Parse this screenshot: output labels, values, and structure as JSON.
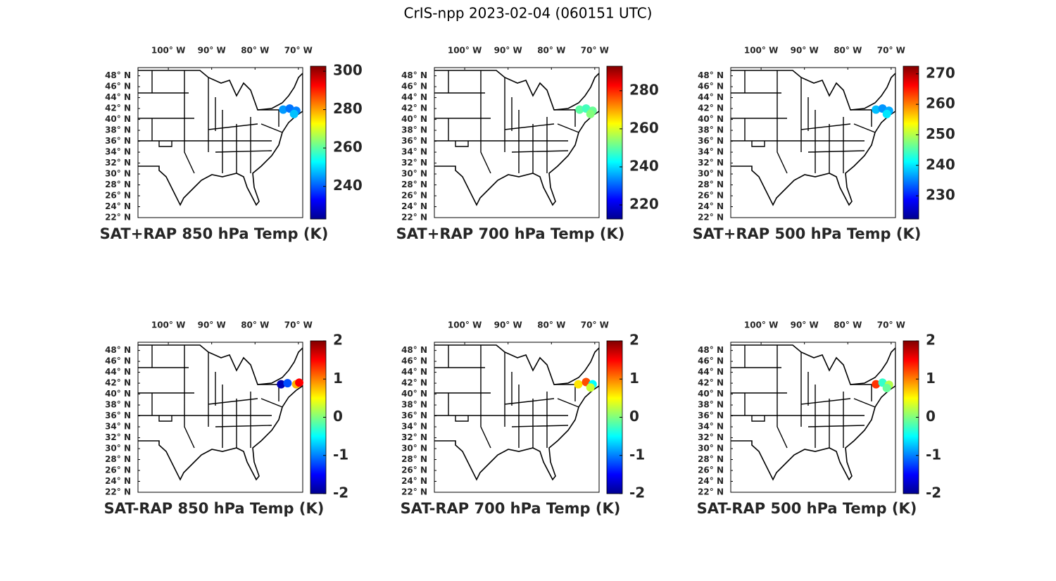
{
  "title": "CrIS-npp 2023-02-04 (060151 UTC)",
  "panels": [
    {
      "title": "SAT+RAP 850 hPa Temp (K)",
      "xlim": [
        -107,
        -69
      ],
      "ylim": [
        22,
        49.5
      ],
      "xticks": [
        {
          "value": -100,
          "label": "100° W"
        },
        {
          "value": -90,
          "label": "90° W"
        },
        {
          "value": -80,
          "label": "80° W"
        },
        {
          "value": -70,
          "label": "70° W"
        }
      ],
      "yticks": [
        {
          "value": 22,
          "label": "22° N"
        },
        {
          "value": 24,
          "label": "24° N"
        },
        {
          "value": 26,
          "label": "26° N"
        },
        {
          "value": 28,
          "label": "28° N"
        },
        {
          "value": 30,
          "label": "30° N"
        },
        {
          "value": 32,
          "label": "32° N"
        },
        {
          "value": 34,
          "label": "34° N"
        },
        {
          "value": 36,
          "label": "36° N"
        },
        {
          "value": 38,
          "label": "38° N"
        },
        {
          "value": 40,
          "label": "40° N"
        },
        {
          "value": 42,
          "label": "42° N"
        },
        {
          "value": 44,
          "label": "44° N"
        },
        {
          "value": 46,
          "label": "46° N"
        },
        {
          "value": 48,
          "label": "48° N"
        }
      ],
      "clim": [
        223,
        302.6
      ],
      "cticks": [
        240,
        260,
        280,
        300
      ],
      "points": [
        {
          "lon": -73.5,
          "lat": 41.8,
          "value": 245
        },
        {
          "lon": -72,
          "lat": 42,
          "value": 242
        },
        {
          "lon": -70.5,
          "lat": 41.6,
          "value": 243
        },
        {
          "lon": -71,
          "lat": 41,
          "value": 248
        }
      ]
    },
    {
      "title": "SAT+RAP 700 hPa Temp (K)",
      "xlim": [
        -107,
        -69
      ],
      "ylim": [
        22,
        49.5
      ],
      "xticks": [
        {
          "value": -100,
          "label": "100° W"
        },
        {
          "value": -90,
          "label": "90° W"
        },
        {
          "value": -80,
          "label": "80° W"
        },
        {
          "value": -70,
          "label": "70° W"
        }
      ],
      "yticks": [
        {
          "value": 22,
          "label": "22° N"
        },
        {
          "value": 24,
          "label": "24° N"
        },
        {
          "value": 26,
          "label": "26° N"
        },
        {
          "value": 28,
          "label": "28° N"
        },
        {
          "value": 30,
          "label": "30° N"
        },
        {
          "value": 32,
          "label": "32° N"
        },
        {
          "value": 34,
          "label": "34° N"
        },
        {
          "value": 36,
          "label": "36° N"
        },
        {
          "value": 38,
          "label": "38° N"
        },
        {
          "value": 40,
          "label": "40° N"
        },
        {
          "value": 42,
          "label": "42° N"
        },
        {
          "value": 44,
          "label": "44° N"
        },
        {
          "value": 46,
          "label": "46° N"
        },
        {
          "value": 48,
          "label": "48° N"
        }
      ],
      "clim": [
        212.6,
        292.9
      ],
      "cticks": [
        220,
        240,
        260,
        280
      ],
      "points": [
        {
          "lon": -73.5,
          "lat": 41.8,
          "value": 250
        },
        {
          "lon": -72,
          "lat": 42,
          "value": 248
        },
        {
          "lon": -70.5,
          "lat": 41.6,
          "value": 251
        },
        {
          "lon": -71,
          "lat": 41,
          "value": 253
        }
      ]
    },
    {
      "title": "SAT+RAP 500 hPa Temp (K)",
      "xlim": [
        -107,
        -69
      ],
      "ylim": [
        22,
        49.5
      ],
      "xticks": [
        {
          "value": -100,
          "label": "100° W"
        },
        {
          "value": -90,
          "label": "90° W"
        },
        {
          "value": -80,
          "label": "80° W"
        },
        {
          "value": -70,
          "label": "70° W"
        }
      ],
      "yticks": [
        {
          "value": 22,
          "label": "22° N"
        },
        {
          "value": 24,
          "label": "24° N"
        },
        {
          "value": 26,
          "label": "26° N"
        },
        {
          "value": 28,
          "label": "28° N"
        },
        {
          "value": 30,
          "label": "30° N"
        },
        {
          "value": 32,
          "label": "32° N"
        },
        {
          "value": 34,
          "label": "34° N"
        },
        {
          "value": 36,
          "label": "36° N"
        },
        {
          "value": 38,
          "label": "38° N"
        },
        {
          "value": 40,
          "label": "40° N"
        },
        {
          "value": 42,
          "label": "42° N"
        },
        {
          "value": 44,
          "label": "44° N"
        },
        {
          "value": 46,
          "label": "46° N"
        },
        {
          "value": 48,
          "label": "48° N"
        }
      ],
      "clim": [
        222.4,
        272.5
      ],
      "cticks": [
        230,
        240,
        250,
        260,
        270
      ],
      "points": [
        {
          "lon": -73.5,
          "lat": 41.8,
          "value": 238
        },
        {
          "lon": -72,
          "lat": 42,
          "value": 236
        },
        {
          "lon": -70.5,
          "lat": 41.6,
          "value": 237
        },
        {
          "lon": -71,
          "lat": 41,
          "value": 240
        }
      ]
    },
    {
      "title": "SAT-RAP 850 hPa Temp (K)",
      "xlim": [
        -107,
        -69
      ],
      "ylim": [
        22,
        49.5
      ],
      "xticks": [
        {
          "value": -100,
          "label": "100° W"
        },
        {
          "value": -90,
          "label": "90° W"
        },
        {
          "value": -80,
          "label": "80° W"
        },
        {
          "value": -70,
          "label": "70° W"
        }
      ],
      "yticks": [
        {
          "value": 22,
          "label": "22° N"
        },
        {
          "value": 24,
          "label": "24° N"
        },
        {
          "value": 26,
          "label": "26° N"
        },
        {
          "value": 28,
          "label": "28° N"
        },
        {
          "value": 30,
          "label": "30° N"
        },
        {
          "value": 32,
          "label": "32° N"
        },
        {
          "value": 34,
          "label": "34° N"
        },
        {
          "value": 36,
          "label": "36° N"
        },
        {
          "value": 38,
          "label": "38° N"
        },
        {
          "value": 40,
          "label": "40° N"
        },
        {
          "value": 42,
          "label": "42° N"
        },
        {
          "value": 44,
          "label": "44° N"
        },
        {
          "value": 46,
          "label": "46° N"
        },
        {
          "value": 48,
          "label": "48° N"
        }
      ],
      "clim": [
        -2,
        2
      ],
      "cticks": [
        -2,
        -1,
        0,
        1,
        2
      ],
      "points": [
        {
          "lon": -74,
          "lat": 41.8,
          "value": -1.8
        },
        {
          "lon": -72.5,
          "lat": 42,
          "value": -1.2
        },
        {
          "lon": -70.5,
          "lat": 41.8,
          "value": 0.8
        },
        {
          "lon": -69.8,
          "lat": 42.1,
          "value": 1.5
        }
      ]
    },
    {
      "title": "SAT-RAP 700 hPa Temp (K)",
      "xlim": [
        -107,
        -69
      ],
      "ylim": [
        22,
        49.5
      ],
      "xticks": [
        {
          "value": -100,
          "label": "100° W"
        },
        {
          "value": -90,
          "label": "90° W"
        },
        {
          "value": -80,
          "label": "80° W"
        },
        {
          "value": -70,
          "label": "70° W"
        }
      ],
      "yticks": [
        {
          "value": 22,
          "label": "22° N"
        },
        {
          "value": 24,
          "label": "24° N"
        },
        {
          "value": 26,
          "label": "26° N"
        },
        {
          "value": 28,
          "label": "28° N"
        },
        {
          "value": 30,
          "label": "30° N"
        },
        {
          "value": 32,
          "label": "32° N"
        },
        {
          "value": 34,
          "label": "34° N"
        },
        {
          "value": 36,
          "label": "36° N"
        },
        {
          "value": 38,
          "label": "38° N"
        },
        {
          "value": 40,
          "label": "40° N"
        },
        {
          "value": 42,
          "label": "42° N"
        },
        {
          "value": 44,
          "label": "44° N"
        },
        {
          "value": 46,
          "label": "46° N"
        },
        {
          "value": 48,
          "label": "48° N"
        }
      ],
      "clim": [
        -2,
        2
      ],
      "cticks": [
        -2,
        -1,
        0,
        1,
        2
      ],
      "points": [
        {
          "lon": -73.8,
          "lat": 41.8,
          "value": 0.6
        },
        {
          "lon": -72,
          "lat": 42.2,
          "value": 1.2
        },
        {
          "lon": -70.5,
          "lat": 41.8,
          "value": -0.5
        },
        {
          "lon": -71,
          "lat": 41.2,
          "value": 0.3
        }
      ]
    },
    {
      "title": "SAT-RAP 500 hPa Temp (K)",
      "xlim": [
        -107,
        -69
      ],
      "ylim": [
        22,
        49.5
      ],
      "xticks": [
        {
          "value": -100,
          "label": "100° W"
        },
        {
          "value": -90,
          "label": "90° W"
        },
        {
          "value": -80,
          "label": "80° W"
        },
        {
          "value": -70,
          "label": "70° W"
        }
      ],
      "yticks": [
        {
          "value": 22,
          "label": "22° N"
        },
        {
          "value": 24,
          "label": "24° N"
        },
        {
          "value": 26,
          "label": "26° N"
        },
        {
          "value": 28,
          "label": "28° N"
        },
        {
          "value": 30,
          "label": "30° N"
        },
        {
          "value": 32,
          "label": "32° N"
        },
        {
          "value": 34,
          "label": "34° N"
        },
        {
          "value": 36,
          "label": "36° N"
        },
        {
          "value": 38,
          "label": "38° N"
        },
        {
          "value": 40,
          "label": "40° N"
        },
        {
          "value": 42,
          "label": "42° N"
        },
        {
          "value": 44,
          "label": "44° N"
        },
        {
          "value": 46,
          "label": "46° N"
        },
        {
          "value": 48,
          "label": "48° N"
        }
      ],
      "clim": [
        -2,
        2
      ],
      "cticks": [
        -2,
        -1,
        0,
        1,
        2
      ],
      "points": [
        {
          "lon": -73.5,
          "lat": 41.8,
          "value": 1.3
        },
        {
          "lon": -72,
          "lat": 42.1,
          "value": -0.3
        },
        {
          "lon": -70.5,
          "lat": 41.7,
          "value": 0.2
        },
        {
          "lon": -71,
          "lat": 41.1,
          "value": -0.1
        }
      ]
    }
  ]
}
